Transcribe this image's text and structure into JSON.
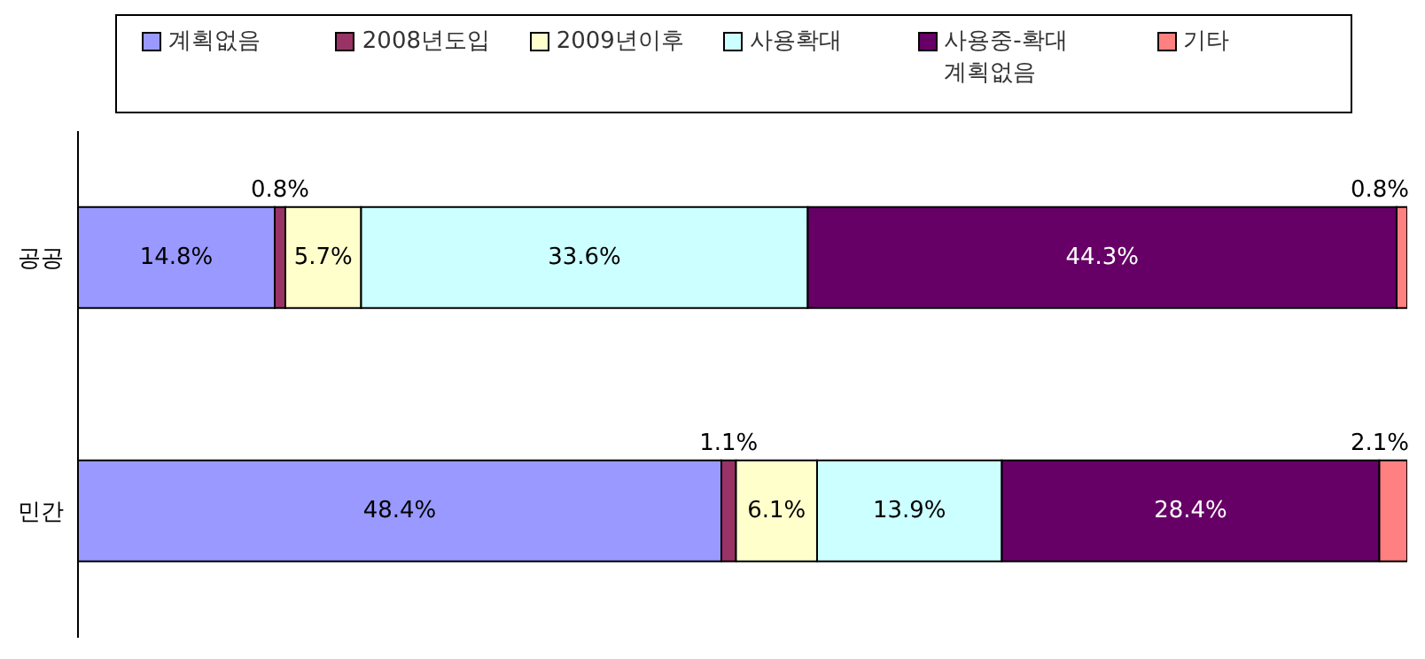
{
  "chart_data": {
    "type": "bar",
    "orientation": "horizontal",
    "stacked": true,
    "categories": [
      "공공",
      "민간"
    ],
    "legend": "top",
    "series": [
      {
        "name": "계획없음",
        "color": "#9999ff",
        "values": [
          14.8,
          48.4
        ],
        "value_labels": [
          "14.8%",
          "48.4%"
        ]
      },
      {
        "name": "2008년도입",
        "color": "#993366",
        "values": [
          0.8,
          1.1
        ],
        "value_labels": [
          "0.8%",
          "1.1%"
        ]
      },
      {
        "name": "2009년이후",
        "color": "#ffffcc",
        "values": [
          5.7,
          6.1
        ],
        "value_labels": [
          "5.7%",
          "6.1%"
        ]
      },
      {
        "name": "사용확대",
        "color": "#ccffff",
        "values": [
          33.6,
          13.9
        ],
        "value_labels": [
          "33.6%",
          "13.9%"
        ]
      },
      {
        "name": "사용중-확대계획없음",
        "color": "#660066",
        "values": [
          44.3,
          28.4
        ],
        "value_labels": [
          "44.3%",
          "28.4%"
        ]
      },
      {
        "name": "기타",
        "color": "#ff8080",
        "values": [
          0.8,
          2.1
        ],
        "value_labels": [
          "0.8%",
          "2.1%"
        ]
      }
    ]
  }
}
